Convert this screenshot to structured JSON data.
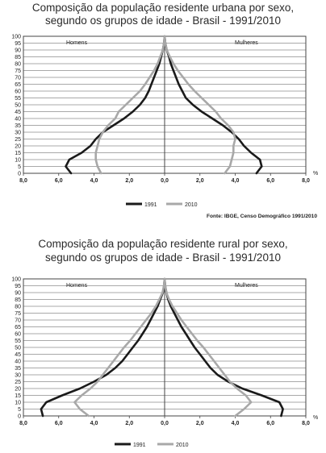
{
  "chart_data": [
    {
      "type": "line",
      "title": "Composição da população residente urbana por sexo,",
      "subtitle": "segundo os grupos de idade - Brasil - 1991/2010",
      "left_label": "Homens",
      "right_label": "Mulheres",
      "unit": "%",
      "x_ticks": [
        "8,0",
        "6,0",
        "4,0",
        "2,0",
        "0,0",
        "2,0",
        "4,0",
        "6,0",
        "8,0"
      ],
      "y_ticks": [
        "100",
        "95",
        "90",
        "85",
        "80",
        "75",
        "70",
        "65",
        "60",
        "55",
        "50",
        "45",
        "40",
        "35",
        "30",
        "25",
        "20",
        "15",
        "10",
        "5",
        "0"
      ],
      "xlim": [
        -8,
        8
      ],
      "ylim": [
        0,
        100
      ],
      "series": [
        {
          "name": "1991",
          "color": "#1a1a1a",
          "ages": [
            0,
            5,
            10,
            15,
            20,
            25,
            30,
            35,
            40,
            45,
            50,
            55,
            60,
            65,
            70,
            75,
            80,
            85,
            90,
            95,
            100
          ],
          "male": [
            5.3,
            5.6,
            5.4,
            4.7,
            4.2,
            3.9,
            3.5,
            2.9,
            2.3,
            1.8,
            1.4,
            1.1,
            0.9,
            0.75,
            0.6,
            0.45,
            0.3,
            0.2,
            0.1,
            0.03,
            0.0
          ],
          "female": [
            5.2,
            5.5,
            5.4,
            4.9,
            4.5,
            4.2,
            3.8,
            3.3,
            2.7,
            2.1,
            1.6,
            1.2,
            1.0,
            0.8,
            0.65,
            0.5,
            0.35,
            0.25,
            0.12,
            0.04,
            0.0
          ]
        },
        {
          "name": "2010",
          "color": "#a8a8a8",
          "ages": [
            0,
            5,
            10,
            15,
            20,
            25,
            30,
            35,
            40,
            45,
            50,
            55,
            60,
            65,
            70,
            75,
            80,
            85,
            90,
            95,
            100
          ],
          "male": [
            3.6,
            3.8,
            3.9,
            3.9,
            3.8,
            3.7,
            3.5,
            3.2,
            2.8,
            2.6,
            2.2,
            1.8,
            1.4,
            1.1,
            0.85,
            0.6,
            0.4,
            0.25,
            0.1,
            0.03,
            0.0
          ],
          "female": [
            3.4,
            3.7,
            3.8,
            3.9,
            3.9,
            4.0,
            3.9,
            3.6,
            3.2,
            2.9,
            2.5,
            2.1,
            1.7,
            1.35,
            1.05,
            0.75,
            0.5,
            0.3,
            0.12,
            0.04,
            0.0
          ]
        }
      ],
      "legend": [
        "1991",
        "2010"
      ],
      "source": "Fonte: IBGE, Censo Demográfico 1991/2010"
    },
    {
      "type": "line",
      "title": "Composição da população residente rural por sexo,",
      "subtitle": "segundo os grupos de idade - Brasil - 1991/2010",
      "left_label": "Homens",
      "right_label": "Mulheres",
      "unit": "%",
      "x_ticks": [
        "8,0",
        "6,0",
        "4,0",
        "2,0",
        "0,0",
        "2,0",
        "4,0",
        "6,0",
        "8,0"
      ],
      "y_ticks": [
        "100",
        "95",
        "90",
        "85",
        "80",
        "75",
        "70",
        "65",
        "60",
        "55",
        "50",
        "45",
        "40",
        "35",
        "30",
        "25",
        "20",
        "15",
        "10",
        "5",
        "0"
      ],
      "xlim": [
        -8,
        8
      ],
      "ylim": [
        0,
        100
      ],
      "series": [
        {
          "name": "1991",
          "color": "#1a1a1a",
          "ages": [
            0,
            5,
            10,
            15,
            20,
            25,
            30,
            35,
            40,
            45,
            50,
            55,
            60,
            65,
            70,
            75,
            80,
            85,
            90,
            95,
            100
          ],
          "male": [
            6.9,
            7.0,
            6.7,
            5.8,
            4.8,
            4.0,
            3.3,
            2.8,
            2.4,
            2.1,
            1.8,
            1.5,
            1.25,
            1.0,
            0.8,
            0.6,
            0.4,
            0.25,
            0.1,
            0.03,
            0.0
          ],
          "female": [
            6.6,
            6.7,
            6.5,
            5.5,
            4.4,
            3.6,
            3.0,
            2.6,
            2.3,
            2.0,
            1.7,
            1.45,
            1.2,
            0.95,
            0.75,
            0.55,
            0.35,
            0.2,
            0.1,
            0.03,
            0.0
          ]
        },
        {
          "name": "2010",
          "color": "#a8a8a8",
          "ages": [
            0,
            5,
            10,
            15,
            20,
            25,
            30,
            35,
            40,
            45,
            50,
            55,
            60,
            65,
            70,
            75,
            80,
            85,
            90,
            95,
            100
          ],
          "male": [
            4.3,
            4.8,
            5.1,
            4.7,
            4.2,
            3.8,
            3.5,
            3.2,
            2.9,
            2.6,
            2.3,
            1.95,
            1.65,
            1.35,
            1.05,
            0.75,
            0.5,
            0.3,
            0.12,
            0.04,
            0.0
          ],
          "female": [
            4.0,
            4.5,
            4.9,
            4.6,
            4.1,
            3.7,
            3.4,
            3.1,
            2.8,
            2.5,
            2.2,
            1.85,
            1.55,
            1.25,
            0.95,
            0.7,
            0.45,
            0.25,
            0.1,
            0.03,
            0.0
          ]
        }
      ],
      "legend": [
        "1991",
        "2010"
      ]
    }
  ]
}
